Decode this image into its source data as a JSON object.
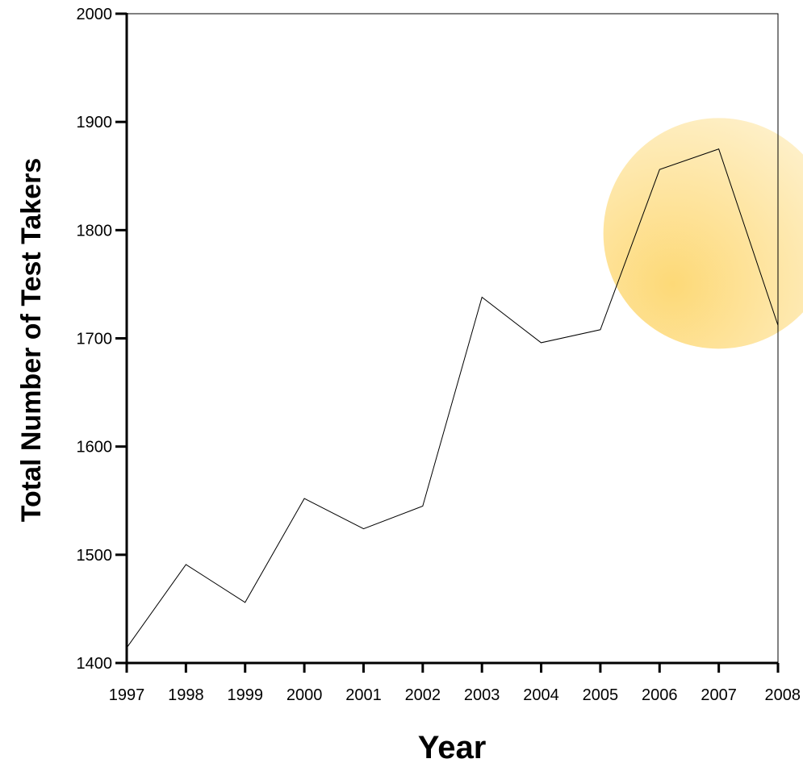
{
  "chart_data": {
    "type": "line",
    "title": "",
    "xlabel": "Year",
    "ylabel": "Total Number of Test Takers",
    "x": [
      "1997",
      "1998",
      "1999",
      "2000",
      "2001",
      "2002",
      "2003",
      "2004",
      "2005",
      "2006",
      "2007",
      "2008"
    ],
    "series": [
      {
        "values": [
          1414,
          1491,
          1456,
          1552,
          1524,
          1545,
          1738,
          1696,
          1708,
          1856,
          1875,
          1712
        ]
      }
    ],
    "ylim": [
      1400,
      2000
    ],
    "yticks": [
      "1400",
      "1500",
      "1600",
      "1700",
      "1800",
      "1900",
      "2000"
    ],
    "grid": false,
    "line_color": "#000000",
    "highlight": {
      "shape": "circle",
      "color": "#fdd770",
      "center_x": "2007",
      "center_y": 1797
    }
  }
}
